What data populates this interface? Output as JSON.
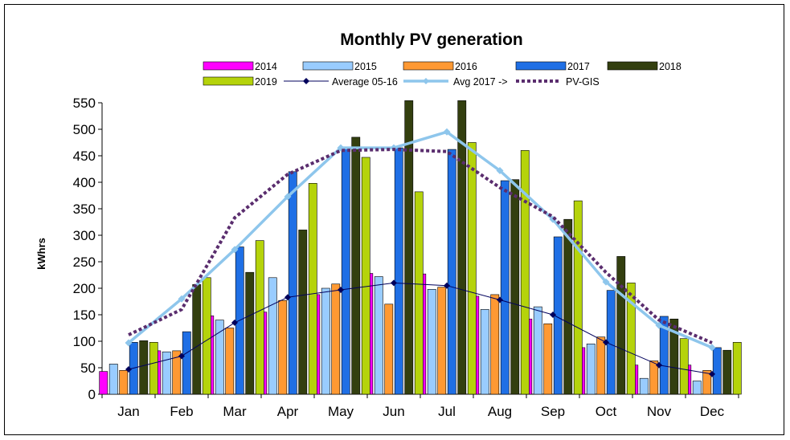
{
  "chart_data": {
    "type": "bar",
    "title": "Monthly PV generation",
    "ylabel": "kWhrs",
    "xlabel": "",
    "ylim": [
      0,
      550
    ],
    "ytick_step": 50,
    "grid": false,
    "legend_position": "top",
    "categories": [
      "Jan",
      "Feb",
      "Mar",
      "Apr",
      "May",
      "Jun",
      "Jul",
      "Aug",
      "Sep",
      "Oct",
      "Nov",
      "Dec"
    ],
    "bar_series": [
      {
        "name": "2014",
        "color": "#ff00ff",
        "values": [
          43,
          82,
          148,
          155,
          188,
          228,
          227,
          185,
          142,
          88,
          55,
          55
        ]
      },
      {
        "name": "2015",
        "color": "#99ccff",
        "values": [
          57,
          80,
          140,
          220,
          200,
          222,
          198,
          160,
          165,
          95,
          30,
          25
        ]
      },
      {
        "name": "2016",
        "color": "#ff9933",
        "values": [
          45,
          82,
          125,
          177,
          208,
          170,
          202,
          188,
          133,
          108,
          63,
          45
        ]
      },
      {
        "name": "2017",
        "color": "#1f6fe5",
        "values": [
          98,
          118,
          278,
          420,
          465,
          465,
          462,
          403,
          297,
          196,
          147,
          88
        ]
      },
      {
        "name": "2018",
        "color": "#333f0f",
        "values": [
          101,
          207,
          230,
          310,
          485,
          554,
          554,
          405,
          330,
          260,
          142,
          83
        ]
      },
      {
        "name": "2019",
        "color": "#b5d30b",
        "values": [
          98,
          220,
          290,
          398,
          447,
          382,
          475,
          460,
          365,
          210,
          105,
          98
        ]
      }
    ],
    "line_series": [
      {
        "name": "Average 05-16",
        "color": "#00005c",
        "marker": "diamond",
        "style": "thin",
        "values": [
          47,
          72,
          135,
          183,
          197,
          210,
          205,
          178,
          150,
          98,
          55,
          38
        ]
      },
      {
        "name": "Avg 2017 ->",
        "color": "#8ec6ec",
        "marker": "diamond",
        "style": "thick",
        "values": [
          97,
          180,
          273,
          373,
          465,
          465,
          495,
          422,
          330,
          212,
          130,
          88
        ]
      },
      {
        "name": "PV-GIS",
        "color": "#5a2d6e",
        "marker": "none",
        "style": "dotted",
        "values": [
          112,
          160,
          333,
          415,
          460,
          462,
          458,
          390,
          335,
          230,
          140,
          97
        ]
      }
    ]
  }
}
